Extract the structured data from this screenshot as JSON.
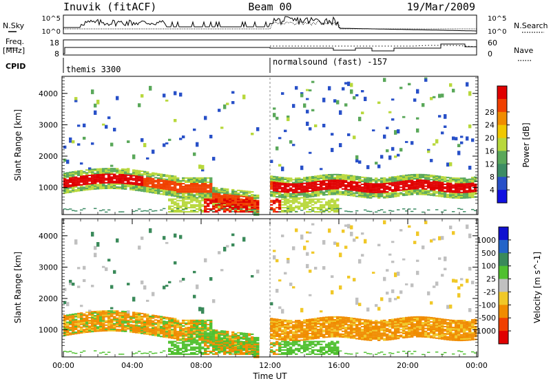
{
  "header": {
    "station": "Inuvik (fitACF)",
    "beam": "Beam 00",
    "date": "19/Mar/2009"
  },
  "top_panels": {
    "nsky_label": "N.Sky",
    "nsky_ticks": [
      "10^5",
      "10^0"
    ],
    "nsearch_label": "N.Search",
    "freq_label": "Freq.",
    "freq_unit": "[MHz]",
    "freq_ticks": [
      "18",
      "8"
    ],
    "nave_label": "Nave",
    "nave_ticks": [
      "60",
      "0"
    ],
    "cpid_label": "CPID",
    "cpid_segments": [
      {
        "label": "themis 3300",
        "start_hour": 0
      },
      {
        "label": "normalsound (fast) -157",
        "start_hour": 12
      }
    ]
  },
  "colors": {
    "power": [
      "#1010e0",
      "#2850c8",
      "#3c8c64",
      "#5aa85a",
      "#b8d83c",
      "#f0c800",
      "#f08c00",
      "#f04000",
      "#e00000"
    ],
    "velocity": [
      "#1010d0",
      "#2464c8",
      "#3a8a5a",
      "#50c030",
      "#c0c0c0",
      "#f0c828",
      "#f08c00",
      "#f04000",
      "#e00000"
    ]
  },
  "chart_data": [
    {
      "type": "heatmap",
      "name": "power",
      "ylabel": "Slant Range [km]",
      "xlabel": "",
      "xlim": [
        0,
        24
      ],
      "ylim": [
        180,
        4500
      ],
      "x_ticks": [],
      "y_ticks": [
        "1000",
        "2000",
        "3000",
        "4000"
      ],
      "y_tick_values": [
        1000,
        2000,
        3000,
        4000
      ],
      "colorbar_label": "Power [dB]",
      "colorbar_ticks": [
        "4",
        "8",
        "12",
        "16",
        "20",
        "24",
        "28"
      ],
      "colorbar_range": [
        0,
        30
      ]
    },
    {
      "type": "heatmap",
      "name": "velocity",
      "ylabel": "Slant Range [km]",
      "xlabel": "Time UT",
      "xlim": [
        0,
        24
      ],
      "ylim": [
        180,
        4500
      ],
      "x_ticks": [
        "00:00",
        "04:00",
        "08:00",
        "12:00",
        "16:00",
        "20:00",
        "00:00"
      ],
      "x_tick_values": [
        0,
        4,
        8,
        12,
        16,
        20,
        24
      ],
      "y_ticks": [
        "1000",
        "2000",
        "3000",
        "4000"
      ],
      "y_tick_values": [
        1000,
        2000,
        3000,
        4000
      ],
      "colorbar_label": "Velocity [m s^-1]",
      "colorbar_ticks": [
        "1000",
        "500",
        "100",
        "25",
        "-25",
        "-100",
        "-500",
        "-1000"
      ]
    }
  ]
}
